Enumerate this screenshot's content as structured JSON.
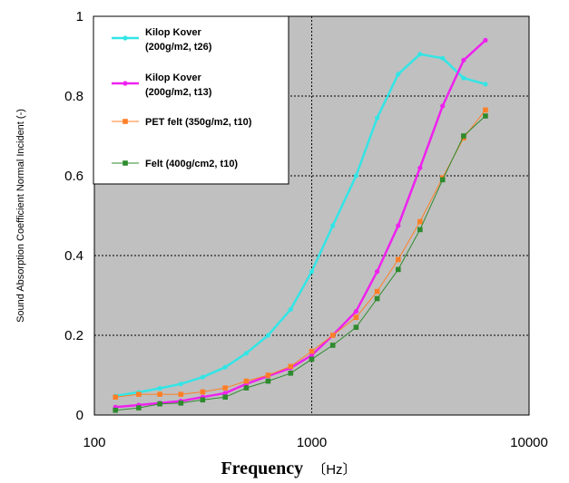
{
  "chart_data": {
    "type": "line",
    "xscale": "log",
    "xlim": [
      100,
      10000
    ],
    "ylim": [
      0,
      1
    ],
    "xlabel": "Frequency",
    "xlabel_unit": "〔Hz〕",
    "ylabel": "Sound Absorption Coefficient Normal Incident (-)",
    "x_ticks": [
      100,
      1000,
      10000
    ],
    "x_tick_labels": [
      "100",
      "1000",
      "10000"
    ],
    "y_ticks": [
      0,
      0.2,
      0.4,
      0.6,
      0.8,
      1
    ],
    "y_tick_labels": [
      "0",
      "0.2",
      "0.4",
      "0.6",
      "0.8",
      "1"
    ],
    "grid": true,
    "legend_position": "top-left",
    "background": "#c0c0c0",
    "x": [
      125,
      160,
      200,
      250,
      315,
      400,
      500,
      630,
      800,
      1000,
      1250,
      1600,
      2000,
      2500,
      3150,
      4000,
      5000,
      6300
    ],
    "series": [
      {
        "name_line1": "Kilop Kover",
        "name_line2": "(200g/m2, t26)",
        "color": "#33e5e5",
        "marker": "circle",
        "width": 2.5,
        "values": [
          0.048,
          0.057,
          0.067,
          0.078,
          0.095,
          0.12,
          0.155,
          0.2,
          0.265,
          0.36,
          0.475,
          0.6,
          0.745,
          0.855,
          0.905,
          0.895,
          0.845,
          0.83
        ]
      },
      {
        "name_line1": "Kilop Kover",
        "name_line2": "(200g/m2, t13)",
        "color": "#ee22ee",
        "marker": "circle",
        "width": 2.5,
        "values": [
          0.02,
          0.025,
          0.03,
          0.035,
          0.045,
          0.055,
          0.078,
          0.098,
          0.118,
          0.15,
          0.2,
          0.26,
          0.36,
          0.475,
          0.62,
          0.775,
          0.89,
          0.94
        ]
      },
      {
        "name_line1": "PET felt (350g/m2, t10)",
        "name_line2": "",
        "color": "#ff7f27",
        "marker": "square",
        "width": 1,
        "values": [
          0.045,
          0.052,
          0.052,
          0.052,
          0.058,
          0.068,
          0.085,
          0.1,
          0.122,
          0.16,
          0.2,
          0.245,
          0.31,
          0.39,
          0.485,
          0.595,
          0.695,
          0.765
        ]
      },
      {
        "name_line1": "Felt (400g/cm2, t10)",
        "name_line2": "",
        "color": "#2e8b2e",
        "marker": "square",
        "width": 1,
        "values": [
          0.012,
          0.018,
          0.028,
          0.03,
          0.038,
          0.045,
          0.068,
          0.085,
          0.105,
          0.14,
          0.175,
          0.22,
          0.292,
          0.365,
          0.465,
          0.59,
          0.7,
          0.75
        ]
      }
    ]
  }
}
